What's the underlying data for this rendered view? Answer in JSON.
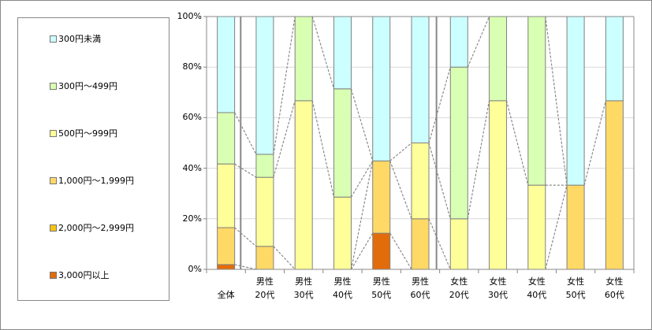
{
  "chart_data": {
    "type": "bar",
    "stacked": "percent",
    "title": "",
    "xlabel": "",
    "ylabel": "",
    "ylim": [
      0,
      100
    ],
    "yticks": [
      "0%",
      "20%",
      "40%",
      "60%",
      "80%",
      "100%"
    ],
    "grid": true,
    "legend_position": "left",
    "series_lines": true,
    "categories": [
      {
        "line1": "",
        "line2": "全体"
      },
      {
        "line1": "男性",
        "line2": "20代"
      },
      {
        "line1": "男性",
        "line2": "30代"
      },
      {
        "line1": "男性",
        "line2": "40代"
      },
      {
        "line1": "男性",
        "line2": "50代"
      },
      {
        "line1": "男性",
        "line2": "60代"
      },
      {
        "line1": "女性",
        "line2": "20代"
      },
      {
        "line1": "女性",
        "line2": "30代"
      },
      {
        "line1": "女性",
        "line2": "40代"
      },
      {
        "line1": "女性",
        "line2": "50代"
      },
      {
        "line1": "女性",
        "line2": "60代"
      }
    ],
    "series": [
      {
        "name": "3,000円以上",
        "color": "#E36C0A",
        "values": [
          1.9,
          0,
          0,
          0,
          14.3,
          0,
          0,
          0,
          0,
          0,
          0
        ]
      },
      {
        "name": "2,000円～2,999円",
        "color": "#F5C518",
        "values": [
          0,
          0,
          0,
          0,
          0,
          0,
          0,
          0,
          0,
          0,
          0
        ]
      },
      {
        "name": "1,000円～1,999円",
        "color": "#FFD966",
        "values": [
          14.6,
          9.1,
          0,
          0,
          28.6,
          20.0,
          0,
          0,
          0,
          33.3,
          66.7
        ]
      },
      {
        "name": "500円～999円",
        "color": "#FFFF99",
        "values": [
          25.2,
          27.3,
          66.7,
          28.6,
          0,
          30.0,
          20.0,
          66.7,
          33.3,
          0,
          0
        ]
      },
      {
        "name": "300円～499円",
        "color": "#D9FFB3",
        "values": [
          20.3,
          9.1,
          33.3,
          42.8,
          0,
          0,
          60.0,
          33.3,
          66.7,
          0,
          0
        ]
      },
      {
        "name": "300円未満",
        "color": "#CCFFFF",
        "values": [
          38.0,
          54.5,
          0,
          28.6,
          57.1,
          50.0,
          20.0,
          0,
          0,
          66.7,
          33.3
        ]
      }
    ]
  },
  "legend": {
    "items": [
      {
        "label": "300円未満",
        "color": "#CCFFFF"
      },
      {
        "label": "300円～499円",
        "color": "#D9FFB3"
      },
      {
        "label": "500円～999円",
        "color": "#FFFF99"
      },
      {
        "label": "1,000円～1,999円",
        "color": "#FFD966"
      },
      {
        "label": "2,000円～2,999円",
        "color": "#F5C518"
      },
      {
        "label": "3,000円以上",
        "color": "#E36C0A"
      }
    ]
  },
  "colors": {
    "axis": "#888888",
    "grid": "#D9D9D9",
    "bar_border": "#808080",
    "connector": "#888888"
  }
}
